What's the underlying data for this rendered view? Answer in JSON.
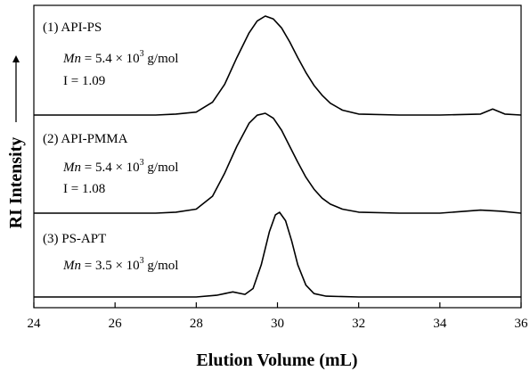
{
  "chart_data": {
    "type": "line",
    "xlabel": "Elution Volume (mL)",
    "ylabel": "RI Intensity",
    "xlim": [
      24,
      36
    ],
    "x_ticks": [
      "24",
      "26",
      "28",
      "30",
      "32",
      "34",
      "36"
    ],
    "grid": false,
    "series": [
      {
        "label": "(1) API-PS",
        "mn_prefix": "Mn",
        "mn_value": " = 5.4 × 10",
        "mn_exp": "3",
        "mn_unit": " g/mol",
        "dispersity": "I = 1.09",
        "peak_x": 29.7,
        "points": [
          [
            24.0,
            0.0
          ],
          [
            25.0,
            0.0
          ],
          [
            26.0,
            0.0
          ],
          [
            27.0,
            0.0
          ],
          [
            27.5,
            0.01
          ],
          [
            28.0,
            0.03
          ],
          [
            28.4,
            0.13
          ],
          [
            28.7,
            0.31
          ],
          [
            29.0,
            0.58
          ],
          [
            29.3,
            0.83
          ],
          [
            29.5,
            0.95
          ],
          [
            29.7,
            1.0
          ],
          [
            29.9,
            0.97
          ],
          [
            30.1,
            0.88
          ],
          [
            30.3,
            0.74
          ],
          [
            30.5,
            0.58
          ],
          [
            30.7,
            0.43
          ],
          [
            30.9,
            0.3
          ],
          [
            31.1,
            0.2
          ],
          [
            31.3,
            0.12
          ],
          [
            31.6,
            0.05
          ],
          [
            32.0,
            0.01
          ],
          [
            33.0,
            0.0
          ],
          [
            34.0,
            0.0
          ],
          [
            35.0,
            0.01
          ],
          [
            35.3,
            0.06
          ],
          [
            35.6,
            0.01
          ],
          [
            36.0,
            0.0
          ]
        ]
      },
      {
        "label": "(2) API-PMMA",
        "mn_prefix": "Mn",
        "mn_value": " = 5.4 × 10",
        "mn_exp": "3",
        "mn_unit": " g/mol",
        "dispersity": "I = 1.08",
        "peak_x": 29.7,
        "points": [
          [
            24.0,
            0.0
          ],
          [
            25.0,
            0.0
          ],
          [
            26.0,
            0.0
          ],
          [
            27.0,
            0.0
          ],
          [
            27.5,
            0.01
          ],
          [
            28.0,
            0.04
          ],
          [
            28.4,
            0.17
          ],
          [
            28.7,
            0.4
          ],
          [
            29.0,
            0.67
          ],
          [
            29.3,
            0.9
          ],
          [
            29.5,
            0.98
          ],
          [
            29.7,
            1.0
          ],
          [
            29.9,
            0.95
          ],
          [
            30.1,
            0.83
          ],
          [
            30.3,
            0.67
          ],
          [
            30.5,
            0.51
          ],
          [
            30.7,
            0.36
          ],
          [
            30.9,
            0.24
          ],
          [
            31.1,
            0.15
          ],
          [
            31.3,
            0.09
          ],
          [
            31.6,
            0.04
          ],
          [
            32.0,
            0.01
          ],
          [
            33.0,
            0.0
          ],
          [
            34.0,
            0.0
          ],
          [
            35.0,
            0.03
          ],
          [
            35.5,
            0.02
          ],
          [
            36.0,
            0.0
          ]
        ]
      },
      {
        "label": "(3) PS-APT",
        "mn_prefix": "Mn",
        "mn_value": " = 3.5 × 10",
        "mn_exp": "3",
        "mn_unit": " g/mol",
        "dispersity": "",
        "peak_x": 30.05,
        "points": [
          [
            24.0,
            0.0
          ],
          [
            25.0,
            0.0
          ],
          [
            26.0,
            0.0
          ],
          [
            27.0,
            0.0
          ],
          [
            28.0,
            0.0
          ],
          [
            28.5,
            0.02
          ],
          [
            28.9,
            0.06
          ],
          [
            29.2,
            0.03
          ],
          [
            29.4,
            0.1
          ],
          [
            29.6,
            0.38
          ],
          [
            29.8,
            0.77
          ],
          [
            29.95,
            0.97
          ],
          [
            30.05,
            1.0
          ],
          [
            30.2,
            0.9
          ],
          [
            30.35,
            0.66
          ],
          [
            30.5,
            0.38
          ],
          [
            30.7,
            0.14
          ],
          [
            30.9,
            0.04
          ],
          [
            31.2,
            0.01
          ],
          [
            32.0,
            0.0
          ],
          [
            33.0,
            0.0
          ],
          [
            34.0,
            0.0
          ],
          [
            35.0,
            0.0
          ],
          [
            36.0,
            0.0
          ]
        ]
      }
    ]
  }
}
